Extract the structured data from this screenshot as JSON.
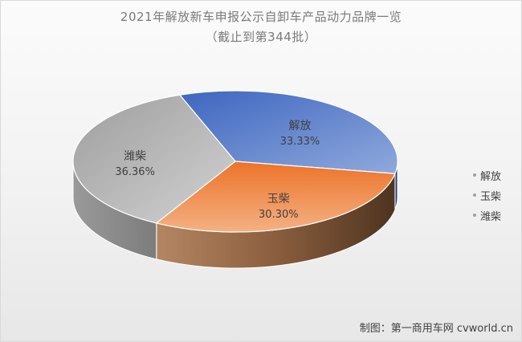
{
  "chart_data": {
    "type": "pie",
    "title": "2021年解放新车申报公示自卸车产品动力品牌一览",
    "subtitle": "（截止到第344批）",
    "slices": [
      {
        "name": "解放",
        "value": 33.33,
        "label": "33.33%",
        "color": "#4f76c6"
      },
      {
        "name": "玉柴",
        "value": 30.3,
        "label": "30.30%",
        "color": "#ed7d31"
      },
      {
        "name": "潍柴",
        "value": 36.36,
        "label": "36.36%",
        "color": "#a5a5a5"
      }
    ],
    "legend": [
      "解放",
      "玉柴",
      "潍柴"
    ],
    "legend_position": "right"
  },
  "credit": "制图：第一商用车网 cvworld.cn"
}
